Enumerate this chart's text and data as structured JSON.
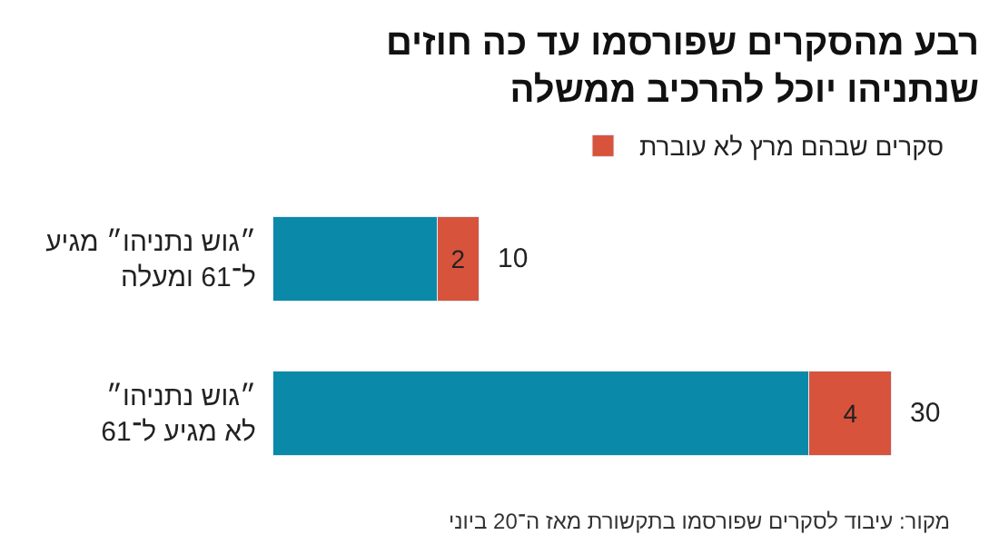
{
  "chart_data": {
    "type": "bar",
    "orientation": "horizontal",
    "stacked": true,
    "title": "רבע מהסקרים שפורסמו עד כה חוזים\nשנתניהו יוכל להרכיב ממשלה",
    "categories": [
      "״גוש נתניהו״ מגיע\nל־61 ומעלה",
      "״גוש נתניהו״\nלא מגיע ל־61"
    ],
    "series": [
      {
        "color": "#0a8aa8",
        "values": [
          8,
          26
        ]
      },
      {
        "name": "סקרים שבהם מרץ לא עוברת",
        "color": "#d8533c",
        "values": [
          2,
          4
        ],
        "value_labels": [
          "2",
          "4"
        ]
      }
    ],
    "totals": [
      "10",
      "30"
    ],
    "legend": "top right",
    "annotations": [
      "מקור: עיבוד לסקרים שפורסמו בתקשורת מאז ה־20 ביוני"
    ]
  }
}
